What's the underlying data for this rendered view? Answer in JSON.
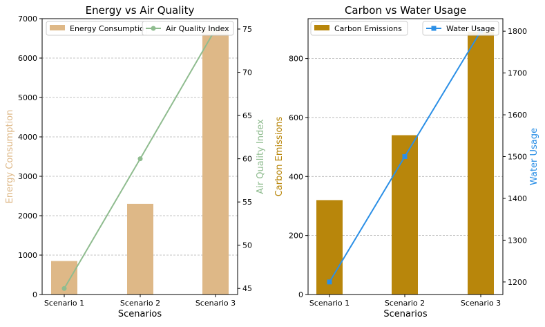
{
  "chart_data": [
    {
      "type": "bar",
      "title": "Energy vs Air Quality",
      "xlabel": "Scenarios",
      "ylabel": "Energy Consumption",
      "ylabel_right": "Air Quality Index",
      "categories": [
        "Scenario 1",
        "Scenario 2",
        "Scenario 3"
      ],
      "ylim": [
        0,
        7000
      ],
      "ylim_right": [
        44.3,
        76.2
      ],
      "yticks": [
        0,
        1000,
        2000,
        3000,
        4000,
        5000,
        6000,
        7000
      ],
      "yticks_right": [
        45,
        50,
        55,
        60,
        65,
        70,
        75
      ],
      "grid": "y-dashed",
      "series": [
        {
          "name": "Energy Consumption",
          "kind": "bar",
          "axis": "left",
          "color": "#deb887",
          "values": [
            850,
            2300,
            6700
          ]
        },
        {
          "name": "Air Quality Index",
          "kind": "line",
          "axis": "right",
          "marker": "circle",
          "color": "#8fbc8f",
          "values": [
            45,
            60,
            75
          ]
        }
      ],
      "legend_left": {
        "position": "top-left",
        "text": "Energy Consumptio"
      },
      "legend_right": {
        "position": "top-right",
        "text": "Air Quality Index"
      }
    },
    {
      "type": "bar",
      "title": "Carbon vs Water Usage",
      "xlabel": "Scenarios",
      "ylabel": "Carbon Emissions",
      "ylabel_right": "Water Usage",
      "categories": [
        "Scenario 1",
        "Scenario 2",
        "Scenario 3"
      ],
      "ylim": [
        0,
        935
      ],
      "ylim_right": [
        1170,
        1830
      ],
      "yticks": [
        0,
        200,
        400,
        600,
        800
      ],
      "yticks_right": [
        1200,
        1300,
        1400,
        1500,
        1600,
        1700,
        1800
      ],
      "grid": "y-dashed",
      "series": [
        {
          "name": "Carbon Emissions",
          "kind": "bar",
          "axis": "left",
          "color": "#b8860b",
          "values": [
            320,
            540,
            890
          ]
        },
        {
          "name": "Water Usage",
          "kind": "line",
          "axis": "right",
          "marker": "square",
          "color": "#2b8fe6",
          "values": [
            1200,
            1500,
            1800
          ]
        }
      ],
      "legend_left": {
        "position": "top-left",
        "text": "Carbon Emissions"
      },
      "legend_right": {
        "position": "top-right",
        "text": "Water Usage"
      }
    }
  ]
}
